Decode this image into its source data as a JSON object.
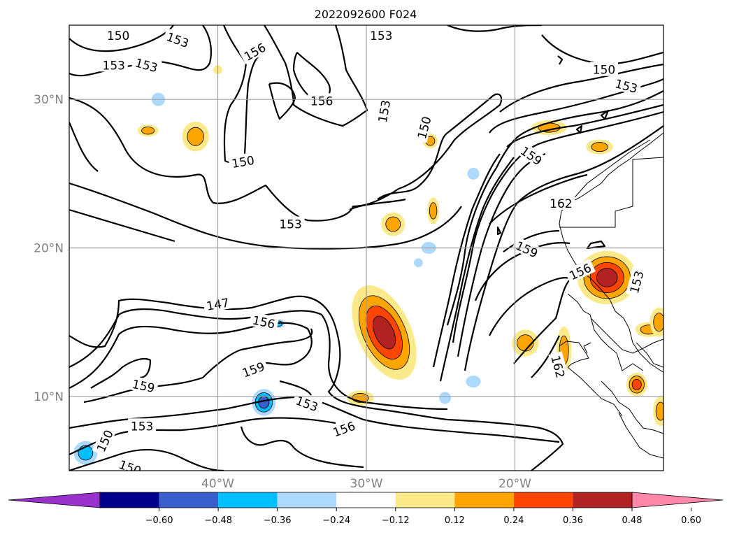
{
  "chart_data": {
    "type": "heatmap",
    "title": "2022092600 F024",
    "map": {
      "lon_range": [
        -50,
        -10
      ],
      "lat_range": [
        5,
        35
      ],
      "grid": true,
      "lon_ticks": [
        {
          "value": -40,
          "label": "40°W"
        },
        {
          "value": -30,
          "label": "30°W"
        },
        {
          "value": -20,
          "label": "20°W"
        }
      ],
      "lat_ticks": [
        {
          "value": 10,
          "label": "10°N"
        },
        {
          "value": 20,
          "label": "20°N"
        },
        {
          "value": 30,
          "label": "30°N"
        }
      ]
    },
    "colorbar": {
      "orientation": "horizontal",
      "extend": "both",
      "boundaries": [
        -0.72,
        -0.6,
        -0.48,
        -0.36,
        -0.24,
        -0.12,
        0.12,
        0.24,
        0.36,
        0.48,
        0.6,
        0.72
      ],
      "colors": [
        "#9932cc",
        "#00008b",
        "#3a5fcd",
        "#00bfff",
        "#add8ff",
        "#ffffff",
        "#fce98a",
        "#ffa500",
        "#ff4500",
        "#b22222",
        "#ff88aa"
      ],
      "tick_labels": [
        "−0.60",
        "−0.48",
        "−0.36",
        "−0.24",
        "−0.12",
        "0.12",
        "0.24",
        "0.36",
        "0.48",
        "0.60"
      ]
    },
    "contours": {
      "levels": [
        147,
        150,
        153,
        156,
        159,
        162
      ],
      "labels": [
        {
          "text": "150",
          "lon": -46.7,
          "lat": 34.3,
          "rot": 0
        },
        {
          "text": "153",
          "lon": -42.7,
          "lat": 34.0,
          "rot": -20
        },
        {
          "text": "153",
          "lon": -47.0,
          "lat": 32.3,
          "rot": 0
        },
        {
          "text": "153",
          "lon": -44.8,
          "lat": 32.3,
          "rot": -15
        },
        {
          "text": "156",
          "lon": -37.5,
          "lat": 33.2,
          "rot": 30
        },
        {
          "text": "156",
          "lon": -33.0,
          "lat": 29.9,
          "rot": 0
        },
        {
          "text": "153",
          "lon": -29.0,
          "lat": 34.3,
          "rot": 0
        },
        {
          "text": "153",
          "lon": -28.8,
          "lat": 29.2,
          "rot": 80
        },
        {
          "text": "150",
          "lon": -26.1,
          "lat": 28.1,
          "rot": 75
        },
        {
          "text": "150",
          "lon": -14.0,
          "lat": 32.0,
          "rot": 0
        },
        {
          "text": "153",
          "lon": -12.5,
          "lat": 30.9,
          "rot": -15
        },
        {
          "text": "150",
          "lon": -38.3,
          "lat": 25.8,
          "rot": 10
        },
        {
          "text": "153",
          "lon": -35.1,
          "lat": 21.6,
          "rot": 0
        },
        {
          "text": "159",
          "lon": -18.9,
          "lat": 26.2,
          "rot": -35
        },
        {
          "text": "162",
          "lon": -16.9,
          "lat": 23.0,
          "rot": 0
        },
        {
          "text": "159",
          "lon": -19.2,
          "lat": 19.9,
          "rot": -25
        },
        {
          "text": "156",
          "lon": -15.6,
          "lat": 18.4,
          "rot": 25
        },
        {
          "text": "153",
          "lon": -11.8,
          "lat": 17.7,
          "rot": 75
        },
        {
          "text": "147",
          "lon": -40.0,
          "lat": 16.2,
          "rot": 10
        },
        {
          "text": "156",
          "lon": -36.9,
          "lat": 15.0,
          "rot": -12
        },
        {
          "text": "159",
          "lon": -37.6,
          "lat": 11.8,
          "rot": 20
        },
        {
          "text": "159",
          "lon": -45.0,
          "lat": 10.7,
          "rot": -12
        },
        {
          "text": "153",
          "lon": -34.0,
          "lat": 9.5,
          "rot": -20
        },
        {
          "text": "156",
          "lon": -31.5,
          "lat": 7.8,
          "rot": 20
        },
        {
          "text": "153",
          "lon": -45.1,
          "lat": 8.0,
          "rot": 0
        },
        {
          "text": "150",
          "lon": -47.6,
          "lat": 7.0,
          "rot": 65
        },
        {
          "text": "150",
          "lon": -45.9,
          "lat": 5.2,
          "rot": -20
        },
        {
          "text": "162",
          "lon": -17.1,
          "lat": 12.0,
          "rot": -75
        }
      ]
    },
    "anomaly_blobs": [
      {
        "lon": -28.8,
        "lat": 14.3,
        "rx": 1.8,
        "ry": 3.4,
        "value": 0.55,
        "rot": -25
      },
      {
        "lon": -13.8,
        "lat": 18.0,
        "rx": 2.0,
        "ry": 1.8,
        "value": 0.52,
        "rot": 0
      },
      {
        "lon": -41.5,
        "lat": 27.5,
        "rx": 0.9,
        "ry": 1.0,
        "value": 0.3,
        "rot": 0
      },
      {
        "lon": -44.7,
        "lat": 27.9,
        "rx": 0.7,
        "ry": 0.4,
        "value": 0.3,
        "rot": 0
      },
      {
        "lon": -28.2,
        "lat": 21.6,
        "rx": 0.8,
        "ry": 0.8,
        "value": 0.3,
        "rot": 0
      },
      {
        "lon": -19.3,
        "lat": 13.6,
        "rx": 0.9,
        "ry": 0.9,
        "value": 0.3,
        "rot": 0
      },
      {
        "lon": -16.7,
        "lat": 13.1,
        "rx": 0.5,
        "ry": 1.6,
        "value": 0.3,
        "rot": 0
      },
      {
        "lon": -11.8,
        "lat": 10.8,
        "rx": 0.7,
        "ry": 0.8,
        "value": 0.37,
        "rot": 0
      },
      {
        "lon": -10.2,
        "lat": 9.0,
        "rx": 0.5,
        "ry": 1.0,
        "value": 0.3,
        "rot": 0
      },
      {
        "lon": -17.7,
        "lat": 28.1,
        "rx": 1.2,
        "ry": 0.5,
        "value": 0.3,
        "rot": 0
      },
      {
        "lon": -14.3,
        "lat": 26.8,
        "rx": 0.9,
        "ry": 0.5,
        "value": 0.3,
        "rot": 0
      },
      {
        "lon": -25.5,
        "lat": 22.5,
        "rx": 0.4,
        "ry": 0.9,
        "value": 0.3,
        "rot": 0
      },
      {
        "lon": -25.7,
        "lat": 27.2,
        "rx": 0.5,
        "ry": 0.5,
        "value": 0.3,
        "rot": 0
      },
      {
        "lon": -30.4,
        "lat": 9.9,
        "rx": 0.9,
        "ry": 0.5,
        "value": 0.3,
        "rot": 0
      },
      {
        "lon": -11.0,
        "lat": 14.5,
        "rx": 0.9,
        "ry": 0.5,
        "value": 0.3,
        "rot": 0
      },
      {
        "lon": -10.3,
        "lat": 15.0,
        "rx": 0.6,
        "ry": 1.0,
        "value": 0.3,
        "rot": 0
      },
      {
        "lon": -40.0,
        "lat": 32.0,
        "rx": 0.3,
        "ry": 0.3,
        "value": 0.15,
        "rot": 0
      },
      {
        "lon": -44.0,
        "lat": 30.0,
        "rx": 0.45,
        "ry": 0.45,
        "value": -0.18,
        "rot": 0
      },
      {
        "lon": -36.9,
        "lat": 9.6,
        "rx": 0.8,
        "ry": 0.9,
        "value": -0.42,
        "rot": 0
      },
      {
        "lon": -48.9,
        "lat": 6.2,
        "rx": 0.8,
        "ry": 0.8,
        "value": -0.32,
        "rot": 0
      },
      {
        "lon": -35.9,
        "lat": 14.9,
        "rx": 0.4,
        "ry": 0.3,
        "value": -0.25,
        "rot": 0
      },
      {
        "lon": -25.8,
        "lat": 20.0,
        "rx": 0.5,
        "ry": 0.4,
        "value": -0.2,
        "rot": 0
      },
      {
        "lon": -26.5,
        "lat": 19.0,
        "rx": 0.3,
        "ry": 0.3,
        "value": -0.16,
        "rot": 0
      },
      {
        "lon": -22.8,
        "lat": 25.0,
        "rx": 0.4,
        "ry": 0.4,
        "value": -0.2,
        "rot": 0
      },
      {
        "lon": -24.7,
        "lat": 9.9,
        "rx": 0.4,
        "ry": 0.4,
        "value": -0.2,
        "rot": 0
      },
      {
        "lon": -22.8,
        "lat": 11.0,
        "rx": 0.5,
        "ry": 0.4,
        "value": -0.15,
        "rot": 0
      }
    ]
  }
}
